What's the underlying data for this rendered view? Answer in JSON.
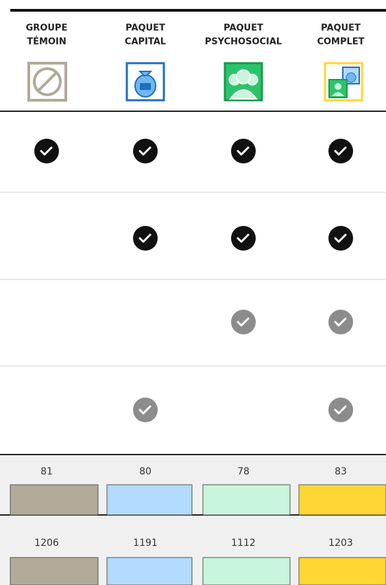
{
  "columns": [
    {
      "label": [
        "GROUPE",
        "TÉMOIN"
      ],
      "color": "#b0aa98"
    },
    {
      "label": [
        "PAQUET",
        "CAPITAL"
      ],
      "color": "#b3daff"
    },
    {
      "label": [
        "PAQUET",
        "PSYCHOSOCIAL"
      ],
      "color": "#c8f5dc"
    },
    {
      "label": [
        "PAQUET",
        "COMPLET"
      ],
      "color": "#ffd633"
    }
  ],
  "check_rows": [
    [
      "#111111",
      "#111111",
      "#111111",
      "#111111"
    ],
    [
      null,
      "#111111",
      "#111111",
      "#111111"
    ],
    [
      null,
      null,
      "#8c8c8c",
      "#8c8c8c"
    ],
    [
      null,
      "#8c8c8c",
      null,
      "#8c8c8c"
    ]
  ],
  "stats": [
    {
      "values": [
        81,
        80,
        78,
        83
      ]
    },
    {
      "values": [
        1206,
        1191,
        1112,
        1203
      ]
    }
  ]
}
